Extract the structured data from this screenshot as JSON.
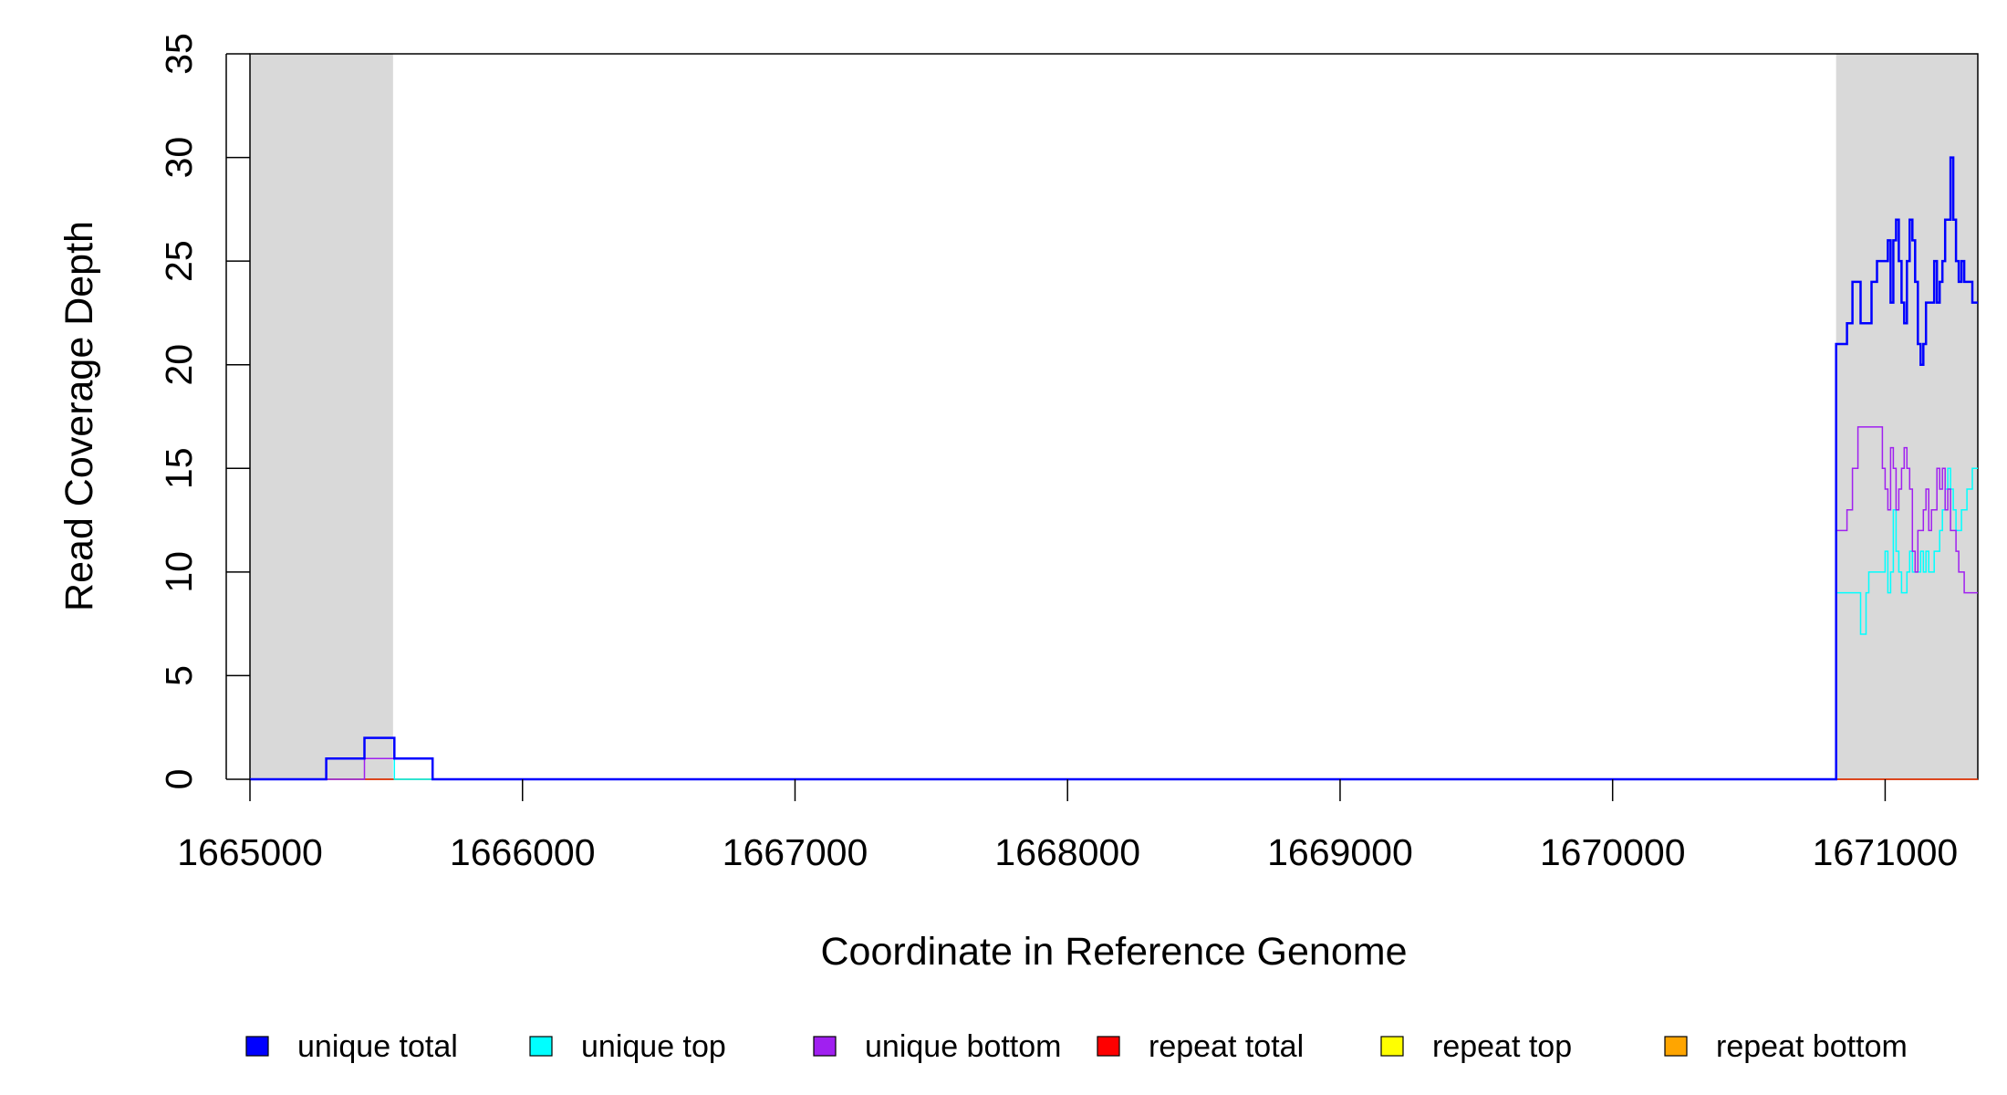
{
  "chart_data": {
    "type": "line",
    "xlabel": "Coordinate in Reference Genome",
    "ylabel": "Read Coverage Depth",
    "xlim": [
      1665000,
      1671340
    ],
    "ylim": [
      0,
      35
    ],
    "x_ticks": [
      {
        "value": 1665000,
        "label": "1665000"
      },
      {
        "value": 1666000,
        "label": "1666000"
      },
      {
        "value": 1667000,
        "label": "1667000"
      },
      {
        "value": 1668000,
        "label": "1668000"
      },
      {
        "value": 1669000,
        "label": "1669000"
      },
      {
        "value": 1670000,
        "label": "1670000"
      },
      {
        "value": 1671000,
        "label": "1671000"
      }
    ],
    "y_ticks": [
      {
        "value": 0,
        "label": "0"
      },
      {
        "value": 5,
        "label": "5"
      },
      {
        "value": 10,
        "label": "10"
      },
      {
        "value": 15,
        "label": "15"
      },
      {
        "value": 20,
        "label": "20"
      },
      {
        "value": 25,
        "label": "25"
      },
      {
        "value": 30,
        "label": "30"
      },
      {
        "value": 35,
        "label": "35"
      }
    ],
    "shaded_regions": [
      {
        "start": 1665000,
        "end": 1665525,
        "color": "#d9d9d9"
      },
      {
        "start": 1670820,
        "end": 1671340,
        "color": "#d9d9d9"
      }
    ],
    "series": [
      {
        "name": "unique total",
        "color": "#0000ff",
        "width": 2.5,
        "x": [
          1665000,
          1665280,
          1665420,
          1665530,
          1665670,
          1670820,
          1670830,
          1670860,
          1670880,
          1670910,
          1670950,
          1670970,
          1671000,
          1671010,
          1671020,
          1671030,
          1671040,
          1671050,
          1671060,
          1671070,
          1671080,
          1671090,
          1671100,
          1671110,
          1671120,
          1671130,
          1671140,
          1671150,
          1671160,
          1671170,
          1671180,
          1671190,
          1671200,
          1671210,
          1671220,
          1671230,
          1671240,
          1671250,
          1671260,
          1671270,
          1671280,
          1671290,
          1671300,
          1671310,
          1671320,
          1671330
        ],
        "y": [
          0,
          1,
          2,
          1,
          0,
          21,
          21,
          22,
          24,
          22,
          24,
          25,
          25,
          26,
          23,
          26,
          27,
          25,
          23,
          22,
          25,
          27,
          26,
          24,
          21,
          20,
          21,
          23,
          23,
          23,
          25,
          23,
          24,
          25,
          27,
          27,
          30,
          27,
          25,
          24,
          25,
          24,
          24,
          24,
          23,
          23
        ]
      },
      {
        "name": "unique top",
        "color": "#00ffff",
        "width": 1.5,
        "x": [
          1665000,
          1665280,
          1665420,
          1665530,
          1670820,
          1670880,
          1670910,
          1670930,
          1670940,
          1670990,
          1671000,
          1671010,
          1671020,
          1671030,
          1671040,
          1671050,
          1671060,
          1671070,
          1671080,
          1671090,
          1671100,
          1671110,
          1671120,
          1671130,
          1671140,
          1671150,
          1671160,
          1671170,
          1671180,
          1671190,
          1671200,
          1671210,
          1671220,
          1671230,
          1671240,
          1671250,
          1671260,
          1671270,
          1671280,
          1671290,
          1671300,
          1671310,
          1671320,
          1671330
        ],
        "y": [
          0,
          1,
          1,
          0,
          9,
          9,
          7,
          9,
          10,
          10,
          11,
          9,
          10,
          13,
          11,
          10,
          9,
          9,
          10,
          11,
          10,
          10,
          10,
          11,
          10,
          11,
          10,
          10,
          11,
          11,
          12,
          13,
          14,
          15,
          14,
          13,
          12,
          12,
          13,
          13,
          14,
          14,
          15,
          15
        ]
      },
      {
        "name": "unique bottom",
        "color": "#a020f0",
        "width": 1.5,
        "x": [
          1665000,
          1665420,
          1665530,
          1665670,
          1670820,
          1670830,
          1670860,
          1670880,
          1670900,
          1670990,
          1671000,
          1671010,
          1671020,
          1671030,
          1671040,
          1671050,
          1671060,
          1671070,
          1671080,
          1671090,
          1671100,
          1671110,
          1671120,
          1671130,
          1671140,
          1671150,
          1671160,
          1671170,
          1671180,
          1671190,
          1671200,
          1671210,
          1671220,
          1671230,
          1671240,
          1671250,
          1671260,
          1671270,
          1671280,
          1671290,
          1671300,
          1671310,
          1671320,
          1671330
        ],
        "y": [
          0,
          1,
          1,
          0,
          12,
          12,
          13,
          15,
          17,
          15,
          14,
          13,
          16,
          15,
          13,
          14,
          15,
          16,
          15,
          14,
          11,
          10,
          12,
          12,
          13,
          14,
          12,
          13,
          13,
          15,
          14,
          15,
          13,
          14,
          12,
          12,
          11,
          10,
          10,
          9,
          9,
          9,
          9,
          9
        ]
      },
      {
        "name": "repeat total",
        "color": "#ff0000",
        "width": 1,
        "x": [
          1665000,
          1671340
        ],
        "y": [
          0,
          0
        ]
      },
      {
        "name": "repeat top",
        "color": "#ffff00",
        "width": 1,
        "x": [
          1665000,
          1671340
        ],
        "y": [
          0,
          0
        ]
      },
      {
        "name": "repeat bottom",
        "color": "#ffa500",
        "width": 1.5,
        "x": [
          1665000,
          1671340
        ],
        "y": [
          0,
          0
        ]
      }
    ],
    "legend": {
      "position": "bottom",
      "entries": [
        {
          "label": "unique total",
          "color": "#0000ff"
        },
        {
          "label": "unique top",
          "color": "#00ffff"
        },
        {
          "label": "unique bottom",
          "color": "#a020f0"
        },
        {
          "label": "repeat total",
          "color": "#ff0000"
        },
        {
          "label": "repeat top",
          "color": "#ffff00"
        },
        {
          "label": "repeat bottom",
          "color": "#ffa500"
        }
      ]
    }
  }
}
